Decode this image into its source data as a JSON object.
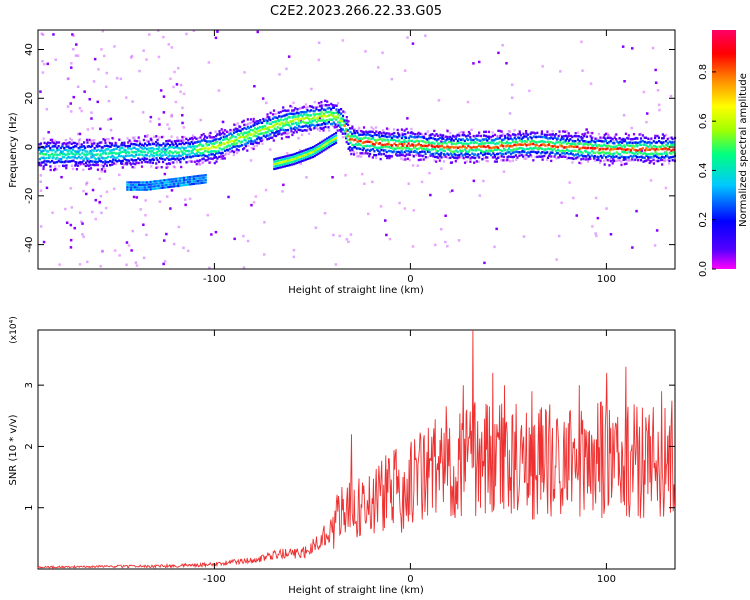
{
  "title": "C2E2.2023.266.22.33.G05",
  "colors": {
    "snr_line": "#ee3030",
    "colormap": [
      "#ff00ff",
      "#5500ff",
      "#0000ff",
      "#00c8ff",
      "#00ff80",
      "#a0ff00",
      "#ffff00",
      "#ff8000",
      "#ff0000",
      "#ff0066"
    ]
  },
  "chart_data": [
    {
      "type": "heatmap",
      "xlabel": "Height of straight line (km)",
      "ylabel": "Frequency (Hz)",
      "xlim": [
        -190,
        135
      ],
      "ylim": [
        -50,
        48
      ],
      "xticks": [
        -100,
        0,
        100
      ],
      "yticks": [
        -40,
        -20,
        0,
        20,
        40
      ],
      "colorbar": {
        "label": "Normalized spectral amplitude",
        "range": [
          0.0,
          0.97
        ],
        "ticks": [
          "0.0",
          "0.2",
          "0.4",
          "0.6",
          "0.8"
        ]
      },
      "traces": [
        {
          "name": "main",
          "points": [
            [
              -190,
              -3
            ],
            [
              -160,
              -3
            ],
            [
              -140,
              -2
            ],
            [
              -120,
              -2
            ],
            [
              -110,
              -1
            ],
            [
              -100,
              0
            ],
            [
              -90,
              3
            ],
            [
              -80,
              6
            ],
            [
              -70,
              9
            ],
            [
              -60,
              11
            ],
            [
              -50,
              12
            ],
            [
              -40,
              13
            ],
            [
              -35,
              10
            ],
            [
              -32,
              3
            ],
            [
              -25,
              2
            ],
            [
              -10,
              1
            ],
            [
              0,
              1
            ],
            [
              20,
              0
            ],
            [
              40,
              0
            ],
            [
              60,
              1
            ],
            [
              80,
              0
            ],
            [
              100,
              -1
            ],
            [
              120,
              -1
            ],
            [
              135,
              -1
            ]
          ]
        },
        {
          "name": "branch",
          "points": [
            [
              -70,
              -7
            ],
            [
              -60,
              -5
            ],
            [
              -50,
              -2
            ],
            [
              -42,
              2
            ],
            [
              -38,
              4
            ]
          ]
        },
        {
          "name": "low",
          "points": [
            [
              -145,
              -16
            ],
            [
              -135,
              -16
            ],
            [
              -125,
              -15
            ],
            [
              -115,
              -14
            ],
            [
              -105,
              -13
            ]
          ]
        }
      ]
    },
    {
      "type": "line",
      "xlabel": "Height of straight line (km)",
      "ylabel": "SNR (10 * v/v)",
      "y_multiplier": "(x10⁴)",
      "xlim": [
        -190,
        135
      ],
      "ylim": [
        0,
        3.9
      ],
      "xticks": [
        -100,
        0,
        100
      ],
      "yticks": [
        1,
        2,
        3
      ],
      "envelope": [
        [
          -190,
          0.03
        ],
        [
          -120,
          0.05
        ],
        [
          -100,
          0.08
        ],
        [
          -80,
          0.15
        ],
        [
          -65,
          0.25
        ],
        [
          -55,
          0.25
        ],
        [
          -45,
          0.5
        ],
        [
          -35,
          0.9
        ],
        [
          -25,
          1.0
        ],
        [
          -15,
          1.2
        ],
        [
          -5,
          1.3
        ],
        [
          5,
          1.5
        ],
        [
          15,
          1.7
        ],
        [
          25,
          1.8
        ],
        [
          35,
          1.85
        ],
        [
          50,
          1.8
        ],
        [
          70,
          1.75
        ],
        [
          90,
          1.8
        ],
        [
          110,
          1.75
        ],
        [
          135,
          1.8
        ]
      ],
      "spikes": [
        [
          -30,
          2.2
        ],
        [
          -11,
          1.8
        ],
        [
          10,
          1.8
        ],
        [
          20,
          2.3
        ],
        [
          27,
          3.0
        ],
        [
          32,
          3.9
        ],
        [
          42,
          3.2
        ],
        [
          48,
          3.0
        ],
        [
          62,
          2.9
        ],
        [
          86,
          3.0
        ],
        [
          100,
          3.2
        ],
        [
          110,
          3.3
        ],
        [
          128,
          2.9
        ]
      ]
    }
  ]
}
